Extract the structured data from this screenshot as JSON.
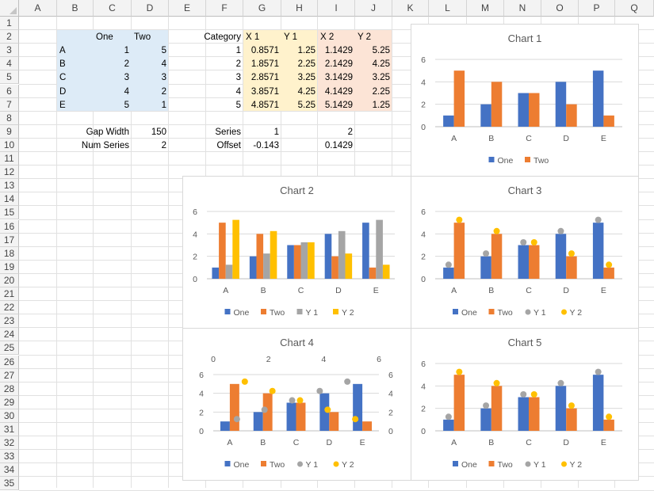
{
  "columns": [
    "A",
    "B",
    "C",
    "D",
    "E",
    "F",
    "G",
    "H",
    "I",
    "J",
    "K",
    "L",
    "M",
    "N",
    "O",
    "P",
    "Q"
  ],
  "rows": [
    "1",
    "2",
    "3",
    "4",
    "5",
    "6",
    "7",
    "8",
    "9",
    "10",
    "11",
    "12",
    "13",
    "14",
    "15",
    "16",
    "17",
    "18",
    "19",
    "20",
    "21",
    "22",
    "23",
    "24",
    "25",
    "26",
    "27",
    "28",
    "29",
    "30",
    "31",
    "32",
    "33",
    "34",
    "35"
  ],
  "table1": {
    "header": [
      "One",
      "Two"
    ],
    "rows": [
      {
        "label": "A",
        "one": "1",
        "two": "5"
      },
      {
        "label": "B",
        "one": "2",
        "two": "4"
      },
      {
        "label": "C",
        "one": "3",
        "two": "3"
      },
      {
        "label": "D",
        "one": "4",
        "two": "2"
      },
      {
        "label": "E",
        "one": "5",
        "two": "1"
      }
    ]
  },
  "table2": {
    "header": [
      "Category",
      "X 1",
      "Y 1",
      "X 2",
      "Y 2"
    ],
    "rows": [
      [
        "1",
        "0.8571",
        "1.25",
        "1.1429",
        "5.25"
      ],
      [
        "2",
        "1.8571",
        "2.25",
        "2.1429",
        "4.25"
      ],
      [
        "3",
        "2.8571",
        "3.25",
        "3.1429",
        "3.25"
      ],
      [
        "4",
        "3.8571",
        "4.25",
        "4.1429",
        "2.25"
      ],
      [
        "5",
        "4.8571",
        "5.25",
        "5.1429",
        "1.25"
      ]
    ]
  },
  "params": {
    "gap_width_label": "Gap Width",
    "gap_width": "150",
    "num_series_label": "Num Series",
    "num_series": "2",
    "series_label": "Series",
    "series_1": "1",
    "series_2": "2",
    "offset_label": "Offset",
    "offset_1": "-0.143",
    "offset_2": "0.1429"
  },
  "colors": {
    "one": "#4472C4",
    "two": "#ED7D31",
    "y1": "#A5A5A5",
    "y2": "#FFC000",
    "blue_fill": "#DDEBF7",
    "yellow_fill": "#FFF2CC",
    "orange_fill": "#FCE4D6"
  },
  "chart_data": [
    {
      "title": "Chart 1",
      "type": "bar",
      "categories": [
        "A",
        "B",
        "C",
        "D",
        "E"
      ],
      "ylim": [
        0,
        6
      ],
      "yticks": [
        "0",
        "2",
        "4",
        "6"
      ],
      "series": [
        {
          "name": "One",
          "kind": "bar",
          "values": [
            1,
            2,
            3,
            4,
            5
          ]
        },
        {
          "name": "Two",
          "kind": "bar",
          "values": [
            5,
            4,
            3,
            2,
            1
          ]
        }
      ],
      "legend": "bottom"
    },
    {
      "title": "Chart 2",
      "type": "bar",
      "categories": [
        "A",
        "B",
        "C",
        "D",
        "E"
      ],
      "ylim": [
        0,
        6
      ],
      "yticks": [
        "0",
        "2",
        "4",
        "6"
      ],
      "series": [
        {
          "name": "One",
          "kind": "bar",
          "values": [
            1,
            2,
            3,
            4,
            5
          ]
        },
        {
          "name": "Two",
          "kind": "bar",
          "values": [
            5,
            4,
            3,
            2,
            1
          ]
        },
        {
          "name": "Y 1",
          "kind": "bar",
          "values": [
            1.25,
            2.25,
            3.25,
            4.25,
            5.25
          ]
        },
        {
          "name": "Y 2",
          "kind": "bar",
          "values": [
            5.25,
            4.25,
            3.25,
            2.25,
            1.25
          ]
        }
      ],
      "legend": "bottom"
    },
    {
      "title": "Chart 3",
      "type": "bar",
      "categories": [
        "A",
        "B",
        "C",
        "D",
        "E"
      ],
      "ylim": [
        0,
        6
      ],
      "yticks": [
        "0",
        "2",
        "4",
        "6"
      ],
      "series": [
        {
          "name": "One",
          "kind": "bar",
          "values": [
            1,
            2,
            3,
            4,
            5
          ]
        },
        {
          "name": "Two",
          "kind": "bar",
          "values": [
            5,
            4,
            3,
            2,
            1
          ]
        },
        {
          "name": "Y 1",
          "kind": "dot",
          "values": [
            1.25,
            2.25,
            3.25,
            4.25,
            5.25
          ]
        },
        {
          "name": "Y 2",
          "kind": "dot",
          "values": [
            5.25,
            4.25,
            3.25,
            2.25,
            1.25
          ]
        }
      ],
      "legend": "bottom"
    },
    {
      "title": "Chart 4",
      "type": "bar",
      "categories": [
        "A",
        "B",
        "C",
        "D",
        "E"
      ],
      "ylim": [
        0,
        6
      ],
      "yticks": [
        "0",
        "2",
        "4",
        "6"
      ],
      "secondary_x_ticks": [
        "0",
        "2",
        "4",
        "6"
      ],
      "secondary_y_ticks": [
        "0",
        "2",
        "4",
        "6"
      ],
      "series": [
        {
          "name": "One",
          "kind": "bar",
          "values": [
            1,
            2,
            3,
            4,
            5
          ]
        },
        {
          "name": "Two",
          "kind": "bar",
          "values": [
            5,
            4,
            3,
            2,
            1
          ]
        },
        {
          "name": "Y 1",
          "kind": "scatter",
          "x": [
            0.8571,
            1.8571,
            2.8571,
            3.8571,
            4.8571
          ],
          "values": [
            1.25,
            2.25,
            3.25,
            4.25,
            5.25
          ]
        },
        {
          "name": "Y 2",
          "kind": "scatter",
          "x": [
            1.1429,
            2.1429,
            3.1429,
            4.1429,
            5.1429
          ],
          "values": [
            5.25,
            4.25,
            3.25,
            2.25,
            1.25
          ]
        }
      ],
      "legend": "bottom"
    },
    {
      "title": "Chart 5",
      "type": "bar",
      "categories": [
        "A",
        "B",
        "C",
        "D",
        "E"
      ],
      "ylim": [
        0,
        6
      ],
      "yticks": [
        "0",
        "2",
        "4",
        "6"
      ],
      "series": [
        {
          "name": "One",
          "kind": "bar",
          "values": [
            1,
            2,
            3,
            4,
            5
          ]
        },
        {
          "name": "Two",
          "kind": "bar",
          "values": [
            5,
            4,
            3,
            2,
            1
          ]
        },
        {
          "name": "Y 1",
          "kind": "dot",
          "values": [
            1.25,
            2.25,
            3.25,
            4.25,
            5.25
          ]
        },
        {
          "name": "Y 2",
          "kind": "dot",
          "values": [
            5.25,
            4.25,
            3.25,
            2.25,
            1.25
          ]
        }
      ],
      "legend": "bottom"
    }
  ]
}
